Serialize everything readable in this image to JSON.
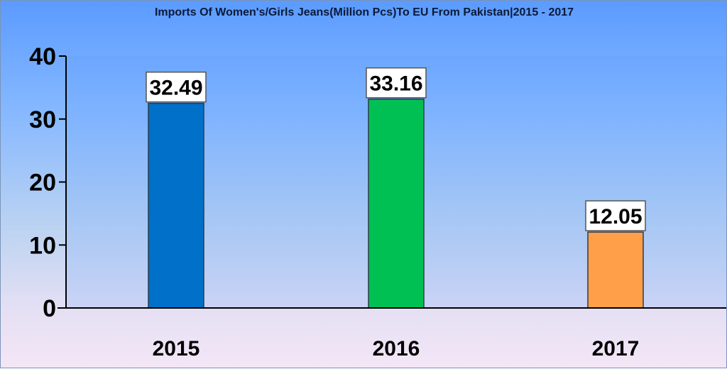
{
  "chart_data": {
    "type": "bar",
    "title": "Imports Of Women's/Girls Jeans(Million Pcs)To EU From Pakistan|2015 - 2017",
    "xlabel": "",
    "ylabel": "",
    "categories": [
      "2015",
      "2016",
      "2017"
    ],
    "values": [
      32.49,
      33.16,
      12.05
    ],
    "data_labels": [
      "32.49",
      "33.16",
      "12.05"
    ],
    "bar_colors": [
      "#0070c8",
      "#00c054",
      "#ff9f4a"
    ],
    "ylim": [
      0,
      40
    ],
    "yticks": [
      "0",
      "10",
      "20",
      "30",
      "40"
    ],
    "grid": false,
    "legend": "none"
  }
}
